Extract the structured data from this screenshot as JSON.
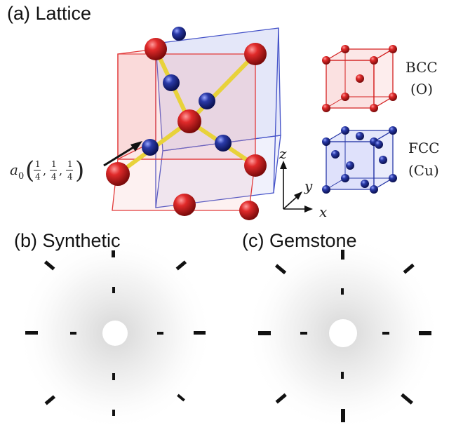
{
  "panels": {
    "a": {
      "label": "(a) Lattice"
    },
    "b": {
      "label": "(b) Synthetic"
    },
    "c": {
      "label": "(c) Gemstone"
    }
  },
  "legend": {
    "bcc": {
      "name": "BCC",
      "element": "(O)",
      "color": "#d42020"
    },
    "fcc": {
      "name": "FCC",
      "element": "(Cu)",
      "color": "#2a3aa8"
    }
  },
  "annotation": {
    "prefix": "a",
    "subscript": "0",
    "fraction": "1/4"
  },
  "axes": {
    "x": "x",
    "y": "y",
    "z": "z"
  },
  "colors": {
    "oxygen": "#d42020",
    "copper": "#2a3aa8",
    "bond": "#e8d23a"
  }
}
